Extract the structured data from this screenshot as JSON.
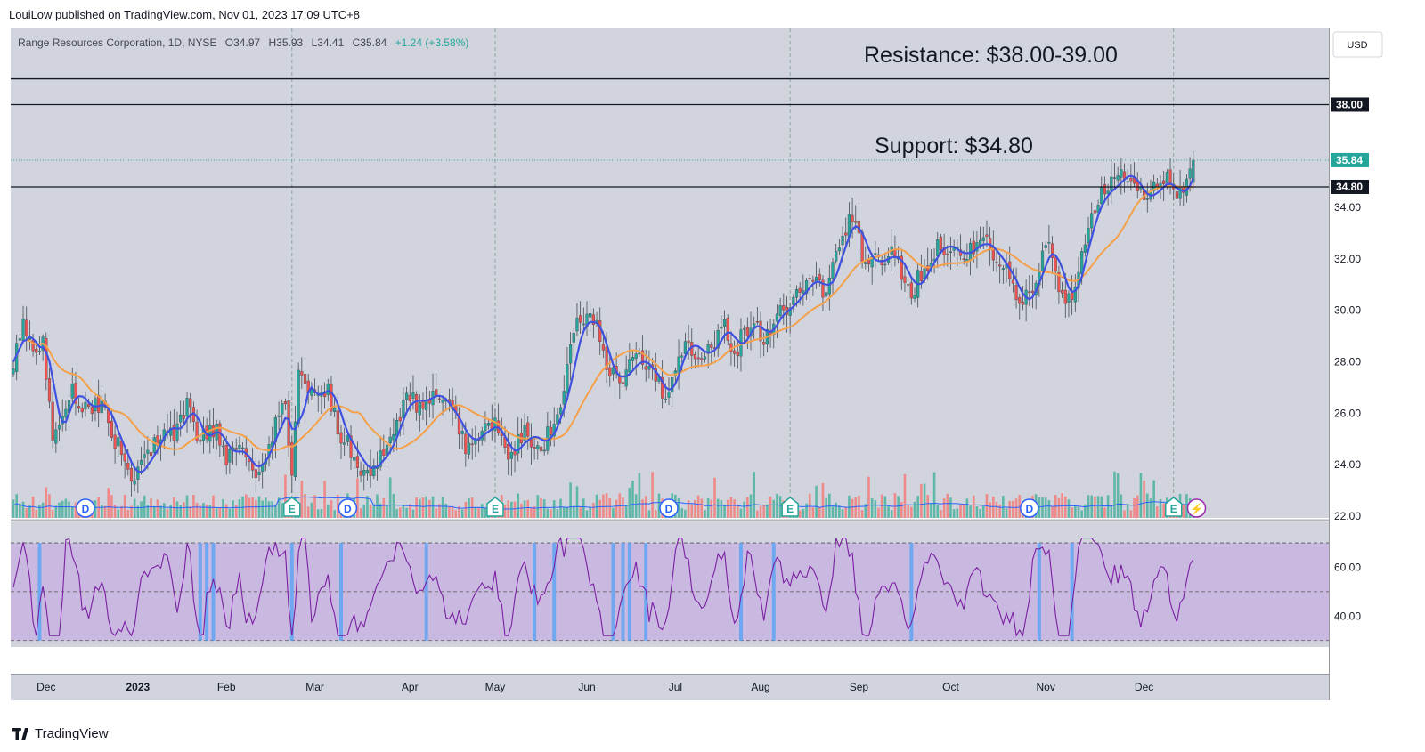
{
  "header": {
    "published": "LouiLow published on TradingView.com, Nov 01, 2023 17:09 UTC+8"
  },
  "legend": {
    "symbol": "Range Resources Corporation, 1D, NYSE",
    "open": "O34.97",
    "high": "H35.93",
    "low": "L34.41",
    "close": "C35.84",
    "change": "+1.24 (+3.58%)"
  },
  "currency_button": "USD",
  "annotations": {
    "resistance": "Resistance: $38.00-39.00",
    "support": "Support: $34.80"
  },
  "price_badges": {
    "resistance": "38.00",
    "support": "34.80",
    "last": "35.84"
  },
  "footer": {
    "brand": "TradingView"
  },
  "colors": {
    "pane_bg": "#d1d4dc",
    "rsi_band": "#c9b9e0",
    "up": "#26a69a",
    "down": "#ef5350",
    "ma_fast": "#3f51e0",
    "ma_slow": "#f5a04a",
    "vol_ma": "#2962ff",
    "rsi": "#7b1fa2",
    "highlight": "#6fa8f0",
    "badge_last": "#26a69a",
    "event_E": "#26a69a",
    "event_D": "#2962ff",
    "event_split": "#9c27b0"
  },
  "chart_data": {
    "type": "candlestick",
    "title": "Range Resources Corporation, 1D, NYSE",
    "x_ticks": [
      "Dec",
      "2023",
      "Feb",
      "Mar",
      "Apr",
      "May",
      "Jun",
      "Jul",
      "Aug",
      "Sep",
      "Oct",
      "Nov",
      "Dec"
    ],
    "x_tick_bars": [
      10,
      38,
      65,
      92,
      121,
      147,
      175,
      202,
      228,
      258,
      286,
      315,
      345
    ],
    "price_axis": {
      "ticks": [
        "34.00",
        "32.00",
        "30.00",
        "28.00",
        "26.00",
        "24.00",
        "22.00"
      ],
      "range": [
        22,
        39.4
      ]
    },
    "rsi_axis": {
      "ticks": [
        "60.00",
        "40.00"
      ],
      "range": [
        22.6,
        80.6
      ],
      "band": [
        30,
        70
      ],
      "mid": 50
    },
    "levels": {
      "resistance": 38.0,
      "support": 34.8,
      "resistance_top": 39.0
    },
    "anchors": [
      [
        0,
        28.0
      ],
      [
        3,
        29.6
      ],
      [
        6,
        28.1
      ],
      [
        9,
        29.0
      ],
      [
        12,
        25.0
      ],
      [
        15,
        26.0
      ],
      [
        18,
        27.0
      ],
      [
        21,
        26.3
      ],
      [
        24,
        26.2
      ],
      [
        27,
        26.5
      ],
      [
        30,
        25.2
      ],
      [
        33,
        24.5
      ],
      [
        36,
        23.4
      ],
      [
        39,
        24.0
      ],
      [
        42,
        24.5
      ],
      [
        46,
        25.6
      ],
      [
        50,
        25.2
      ],
      [
        53,
        26.6
      ],
      [
        56,
        25.0
      ],
      [
        59,
        25.2
      ],
      [
        62,
        25.4
      ],
      [
        65,
        24.2
      ],
      [
        68,
        24.8
      ],
      [
        71,
        24.0
      ],
      [
        74,
        23.8
      ],
      [
        77,
        24.6
      ],
      [
        80,
        25.6
      ],
      [
        83,
        26.3
      ],
      [
        85,
        23.8
      ],
      [
        87,
        27.6
      ],
      [
        90,
        26.6
      ],
      [
        93,
        26.8
      ],
      [
        96,
        27.0
      ],
      [
        99,
        25.4
      ],
      [
        102,
        24.8
      ],
      [
        105,
        24.1
      ],
      [
        108,
        23.7
      ],
      [
        111,
        24.2
      ],
      [
        114,
        24.6
      ],
      [
        117,
        25.8
      ],
      [
        120,
        26.6
      ],
      [
        123,
        26.4
      ],
      [
        126,
        26.6
      ],
      [
        129,
        26.8
      ],
      [
        132,
        26.2
      ],
      [
        135,
        25.7
      ],
      [
        138,
        24.8
      ],
      [
        141,
        25.1
      ],
      [
        144,
        25.4
      ],
      [
        147,
        25.6
      ],
      [
        150,
        24.4
      ],
      [
        153,
        24.6
      ],
      [
        156,
        25.2
      ],
      [
        159,
        25.0
      ],
      [
        162,
        24.8
      ],
      [
        165,
        25.8
      ],
      [
        168,
        26.8
      ],
      [
        170,
        28.4
      ],
      [
        172,
        29.5
      ],
      [
        175,
        29.6
      ],
      [
        178,
        29.4
      ],
      [
        181,
        27.6
      ],
      [
        184,
        27.3
      ],
      [
        187,
        27.6
      ],
      [
        190,
        28.2
      ],
      [
        193,
        27.8
      ],
      [
        196,
        27.3
      ],
      [
        199,
        26.5
      ],
      [
        202,
        28.0
      ],
      [
        205,
        28.8
      ],
      [
        208,
        28.5
      ],
      [
        211,
        28.2
      ],
      [
        214,
        28.8
      ],
      [
        217,
        29.5
      ],
      [
        220,
        28.3
      ],
      [
        223,
        29.2
      ],
      [
        226,
        29.6
      ],
      [
        229,
        28.8
      ],
      [
        232,
        29.8
      ],
      [
        235,
        30.0
      ],
      [
        238,
        30.4
      ],
      [
        241,
        30.9
      ],
      [
        244,
        31.3
      ],
      [
        247,
        30.7
      ],
      [
        250,
        31.6
      ],
      [
        253,
        33.0
      ],
      [
        256,
        33.6
      ],
      [
        259,
        32.2
      ],
      [
        262,
        31.8
      ],
      [
        265,
        32.0
      ],
      [
        268,
        32.2
      ],
      [
        271,
        31.6
      ],
      [
        274,
        30.7
      ],
      [
        277,
        31.4
      ],
      [
        280,
        32.1
      ],
      [
        283,
        32.6
      ],
      [
        286,
        32.4
      ],
      [
        289,
        32.1
      ],
      [
        292,
        32.4
      ],
      [
        295,
        32.7
      ],
      [
        298,
        32.4
      ],
      [
        301,
        31.8
      ],
      [
        304,
        31.3
      ],
      [
        307,
        30.2
      ],
      [
        310,
        30.6
      ],
      [
        313,
        31.8
      ],
      [
        316,
        32.6
      ],
      [
        319,
        31.1
      ],
      [
        322,
        30.3
      ],
      [
        325,
        31.8
      ],
      [
        328,
        33.4
      ],
      [
        331,
        34.4
      ],
      [
        334,
        34.7
      ],
      [
        337,
        35.1
      ],
      [
        340,
        35.4
      ],
      [
        343,
        34.6
      ],
      [
        346,
        34.3
      ],
      [
        349,
        34.9
      ],
      [
        352,
        35.0
      ],
      [
        355,
        34.4
      ],
      [
        358,
        35.0
      ],
      [
        360,
        35.84
      ]
    ],
    "ma_periods": {
      "fast": 5,
      "slow": 20
    },
    "volume_range": [
      0,
      1
    ],
    "events": [
      {
        "label": "D",
        "bar": 22
      },
      {
        "label": "E",
        "bar": 85
      },
      {
        "label": "D",
        "bar": 102
      },
      {
        "label": "E",
        "bar": 147
      },
      {
        "label": "D",
        "bar": 200
      },
      {
        "label": "E",
        "bar": 237
      },
      {
        "label": "D",
        "bar": 310
      },
      {
        "label": "E",
        "bar": 354
      },
      {
        "label": "⚡",
        "bar": 361
      }
    ],
    "event_lines_bars": [
      85,
      147,
      237,
      354
    ],
    "rsi_highlight_bars": [
      8,
      57,
      59,
      61,
      85,
      100,
      126,
      159,
      165,
      183,
      186,
      188,
      193,
      222,
      232,
      274,
      313,
      323
    ]
  }
}
